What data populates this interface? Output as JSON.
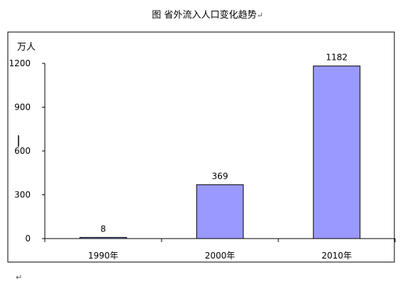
{
  "caption": {
    "text": "图  省外流入人口变化趋势",
    "mark": "↵"
  },
  "footer": {
    "mark": "↵"
  },
  "chart_data": {
    "type": "bar",
    "title": "图  省外流入人口变化趋势",
    "ylabel": "万人",
    "xlabel": "",
    "categories": [
      "1990年",
      "2000年",
      "2010年"
    ],
    "values": [
      8,
      369,
      1182
    ],
    "data_labels": [
      "8",
      "369",
      "1182"
    ],
    "ylim": [
      0,
      1200
    ],
    "yticks": [
      0,
      300,
      600,
      900,
      1200
    ],
    "ytick_labels": [
      "0",
      "300",
      "600",
      "900",
      "1200"
    ],
    "grid": false,
    "legend": false,
    "bar_color": "#9999ff",
    "bar_stroke": "#000000"
  }
}
